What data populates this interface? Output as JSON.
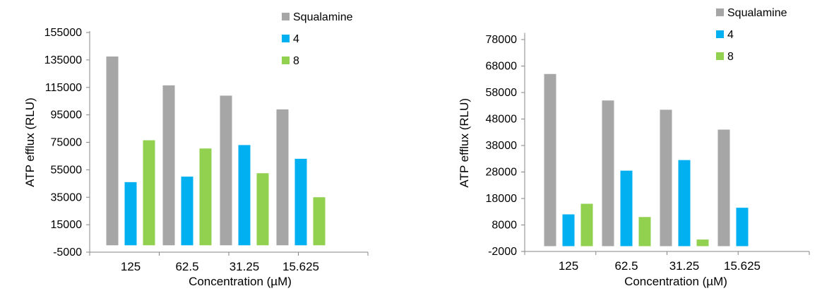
{
  "chart_data": [
    {
      "type": "bar",
      "categories": [
        "125",
        "62.5",
        "31.25",
        "15.625"
      ],
      "series": [
        {
          "name": "Squalamine",
          "color": "#a6a6a6",
          "values": [
            137500,
            116500,
            109000,
            99000
          ]
        },
        {
          "name": "4",
          "color": "#00b0f0",
          "values": [
            46000,
            50000,
            73000,
            63000
          ]
        },
        {
          "name": "8",
          "color": "#92d050",
          "values": [
            76500,
            70500,
            52500,
            35000
          ]
        }
      ],
      "xlabel": "Concentration (µM)",
      "ylabel": "ATP efflux (RLU)",
      "ylim": [
        -5000,
        155000
      ],
      "yticks": [
        "-5000",
        "15000",
        "35000",
        "55000",
        "75000",
        "95000",
        "115000",
        "135000",
        "155000"
      ],
      "legend": "top-right",
      "grid": false
    },
    {
      "type": "bar",
      "categories": [
        "125",
        "62.5",
        "31.25",
        "15.625"
      ],
      "series": [
        {
          "name": "Squalamine",
          "color": "#a6a6a6",
          "values": [
            65000,
            55000,
            51500,
            44000
          ]
        },
        {
          "name": "4",
          "color": "#00b0f0",
          "values": [
            12000,
            28500,
            32500,
            14500
          ]
        },
        {
          "name": "8",
          "color": "#92d050",
          "values": [
            16000,
            11000,
            2500,
            null
          ]
        }
      ],
      "xlabel": "Concentration (µM)",
      "ylabel": "ATP efflux (RLU)",
      "ylim": [
        -2000,
        80000
      ],
      "yticks": [
        "-2000",
        "8000",
        "18000",
        "28000",
        "38000",
        "48000",
        "58000",
        "68000",
        "78000"
      ],
      "legend": "top-right",
      "grid": false
    }
  ]
}
